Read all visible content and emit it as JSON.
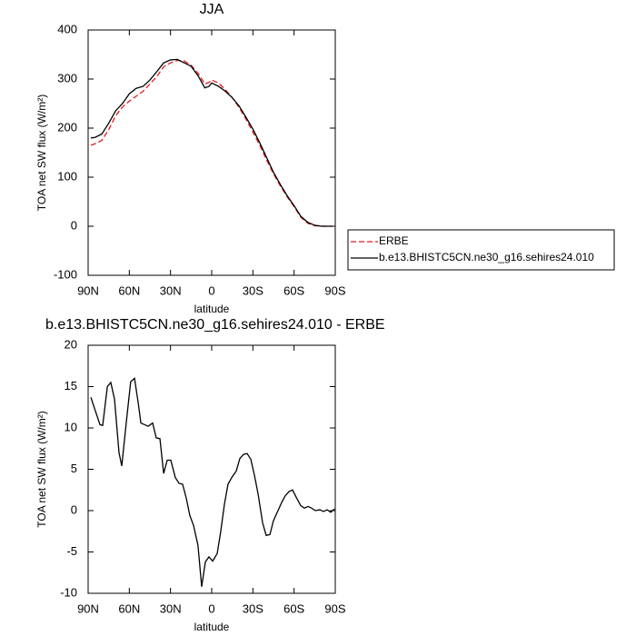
{
  "chart_data": [
    {
      "type": "line",
      "title": "JJA",
      "xlabel": "latitude",
      "ylabel": "TOA net SW flux (W/m²)",
      "xlim": [
        90,
        -90
      ],
      "ylim": [
        -100,
        400
      ],
      "xticks": [
        {
          "value": 90,
          "label": "90N"
        },
        {
          "value": 60,
          "label": "60N"
        },
        {
          "value": 30,
          "label": "30N"
        },
        0,
        {
          "value": -30,
          "label": "30S"
        },
        {
          "value": -60,
          "label": "60S"
        },
        {
          "value": -90,
          "label": "90S"
        }
      ],
      "yticks": [
        -100,
        0,
        100,
        200,
        300,
        400
      ],
      "legend": "right",
      "x": [
        88,
        85,
        80,
        75,
        70,
        65,
        60,
        55,
        50,
        45,
        40,
        35,
        30,
        25,
        20,
        15,
        10,
        5,
        2,
        0,
        -5,
        -10,
        -15,
        -20,
        -25,
        -30,
        -35,
        -40,
        -45,
        -50,
        -55,
        -60,
        -65,
        -70,
        -75,
        -80,
        -85,
        -88
      ],
      "series": [
        {
          "name": "ERBE",
          "color": "#e41a1c",
          "dash": true,
          "values": [
            165,
            168,
            175,
            197,
            225,
            243,
            255,
            265,
            275,
            290,
            305,
            325,
            333,
            338,
            337,
            328,
            312,
            290,
            293,
            298,
            292,
            278,
            262,
            242,
            218,
            192,
            165,
            135,
            107,
            82,
            60,
            40,
            18,
            6,
            1,
            0,
            0,
            0
          ]
        },
        {
          "name": "b.e13.BHISTC5CN.ne30_g16.sehires24.010",
          "color": "#000000",
          "dash": false,
          "values": [
            180,
            181,
            188,
            210,
            235,
            250,
            270,
            281,
            285,
            298,
            315,
            333,
            339,
            340,
            333,
            326,
            307,
            282,
            285,
            292,
            285,
            275,
            262,
            245,
            222,
            198,
            170,
            140,
            110,
            85,
            62,
            42,
            20,
            8,
            2,
            0,
            0,
            0
          ]
        }
      ]
    },
    {
      "type": "line",
      "title": "b.e13.BHISTC5CN.ne30_g16.sehires24.010 - ERBE",
      "xlabel": "latitude",
      "ylabel": "TOA net SW flux (W/m²)",
      "xlim": [
        90,
        -90
      ],
      "ylim": [
        -10,
        20
      ],
      "xticks": [
        {
          "value": 90,
          "label": "90N"
        },
        {
          "value": 60,
          "label": "60N"
        },
        {
          "value": 30,
          "label": "30N"
        },
        0,
        {
          "value": -30,
          "label": "30S"
        },
        {
          "value": -60,
          "label": "60S"
        },
        {
          "value": -90,
          "label": "90S"
        }
      ],
      "yticks": [
        -10,
        -5,
        0,
        5,
        10,
        15,
        20
      ],
      "x": [
        88,
        85.4,
        81.4,
        79.4,
        76,
        73.5,
        70.8,
        67.5,
        65.5,
        62,
        59,
        56.2,
        53.5,
        51.6,
        46.3,
        43,
        40.4,
        37.7,
        35,
        32.4,
        29.8,
        26.5,
        23.8,
        21.2,
        18.5,
        15.9,
        13.2,
        10,
        7.3,
        4.6,
        2,
        -0.7,
        -4,
        -6.6,
        -9.3,
        -11.9,
        -14.6,
        -17.9,
        -20.5,
        -23.2,
        -25.8,
        -28.5,
        -31.1,
        -33.8,
        -37.1,
        -39.7,
        -42.4,
        -45,
        -48.3,
        -51,
        -53.6,
        -56.3,
        -58.9,
        -61.6,
        -64.9,
        -67.5,
        -70.2,
        -72.8,
        -75.5,
        -78.8,
        -81.4,
        -84.1,
        -86.7,
        -89.4
      ],
      "series": [
        {
          "name": "b.e13.BHISTC5CN.ne30_g16.sehires24.010 - ERBE",
          "color": "#000000",
          "dash": false,
          "values": [
            13.7,
            12.4,
            10.4,
            10.3,
            15,
            15.5,
            13.5,
            7,
            5.4,
            11,
            15.6,
            16,
            13,
            10.6,
            10.2,
            10.6,
            8.8,
            8.7,
            4.5,
            6.1,
            6.1,
            4,
            3.3,
            3.2,
            1.5,
            -0.6,
            -1.8,
            -4.2,
            -9.2,
            -6.2,
            -5.6,
            -6.1,
            -5.2,
            -2.5,
            0.8,
            3.2,
            4,
            4.8,
            6.3,
            6.8,
            6.9,
            6.2,
            4.3,
            2,
            -1.5,
            -3,
            -2.9,
            -1.2,
            0,
            1,
            1.8,
            2.3,
            2.5,
            1.6,
            0.6,
            0.3,
            0.5,
            0.3,
            0,
            0.1,
            -0.1,
            0.1,
            -0.2,
            0.2
          ]
        }
      ]
    }
  ]
}
